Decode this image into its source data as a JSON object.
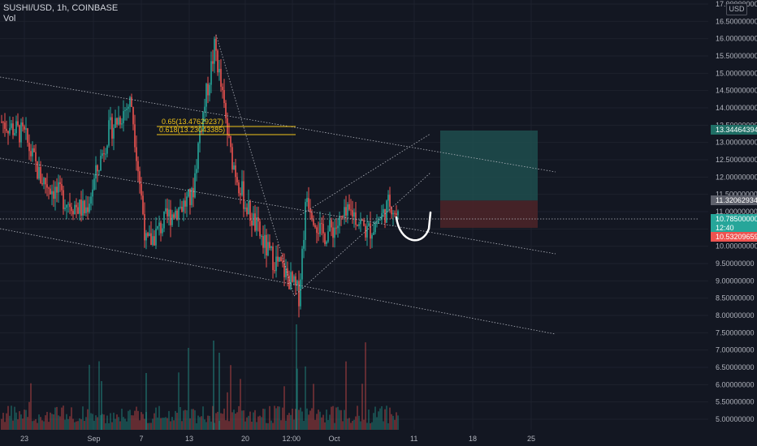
{
  "header": {
    "symbol_line": "SUSHI/USD, 1h, COINBASE",
    "volume_label": "Vol"
  },
  "currency_badge": "USD",
  "colors": {
    "background": "#131722",
    "up": "#26a69a",
    "down": "#ef5350",
    "grid": "#1e222d",
    "axis_text": "#b2b5be",
    "fib": "#f0c419",
    "trendline": "#b2b5be",
    "target_zone": "#1f4e4e",
    "stop_zone": "#4a2328"
  },
  "chart_data": {
    "type": "candlestick",
    "symbol": "SUSHI/USD",
    "interval": "1h",
    "exchange": "COINBASE",
    "ylim": [
      4.8,
      17.0
    ],
    "y_ticks": [
      "5.00000000",
      "5.50000000",
      "6.00000000",
      "6.50000000",
      "7.00000000",
      "7.50000000",
      "8.00000000",
      "8.50000000",
      "9.00000000",
      "9.50000000",
      "10.00000000",
      "10.50000000",
      "11.00000000",
      "11.50000000",
      "12.00000000",
      "12.50000000",
      "13.00000000",
      "13.50000000",
      "14.00000000",
      "14.50000000",
      "15.00000000",
      "15.50000000",
      "16.00000000",
      "16.50000000",
      "17.00000000"
    ],
    "x_ticks": [
      "23",
      "Sep",
      "7",
      "13",
      "20",
      "12:00",
      "Oct",
      "11",
      "18",
      "25"
    ],
    "price_path": [
      [
        0.0,
        13.6
      ],
      [
        0.03,
        13.2
      ],
      [
        0.05,
        12.0
      ],
      [
        0.08,
        11.4
      ],
      [
        0.11,
        11.0
      ],
      [
        0.14,
        13.3
      ],
      [
        0.17,
        14.2
      ],
      [
        0.19,
        10.0
      ],
      [
        0.22,
        10.9
      ],
      [
        0.25,
        11.4
      ],
      [
        0.26,
        13.3
      ],
      [
        0.28,
        15.8
      ],
      [
        0.3,
        12.7
      ],
      [
        0.32,
        11.2
      ],
      [
        0.35,
        9.8
      ],
      [
        0.37,
        9.3
      ],
      [
        0.39,
        8.6
      ],
      [
        0.4,
        11.5
      ],
      [
        0.42,
        10.3
      ],
      [
        0.44,
        10.6
      ],
      [
        0.46,
        11.0
      ],
      [
        0.48,
        10.4
      ],
      [
        0.5,
        10.9
      ],
      [
        0.51,
        11.3
      ],
      [
        0.52,
        10.8
      ]
    ],
    "volume_range": [
      0,
      1
    ],
    "annotations": {
      "fib_levels": [
        {
          "label": "0.65(13.47629237)",
          "price": 13.47629237
        },
        {
          "label": "0.618(13.23043385)",
          "price": 13.23043385
        }
      ],
      "price_labels": [
        {
          "text": "13.34464394",
          "price": 13.34464394,
          "kind": "target"
        },
        {
          "text": "11.32062934",
          "price": 11.32062934,
          "kind": "entry"
        },
        {
          "text": "10.78500000",
          "price": 10.785,
          "kind": "last"
        },
        {
          "text": "12:40",
          "price": 10.785,
          "kind": "countdown"
        },
        {
          "text": "10.53209659",
          "price": 10.53209659,
          "kind": "stop"
        }
      ],
      "position_zone": {
        "target": 13.34464394,
        "entry": 11.32062934,
        "stop": 10.53209659
      }
    },
    "grid": true
  }
}
